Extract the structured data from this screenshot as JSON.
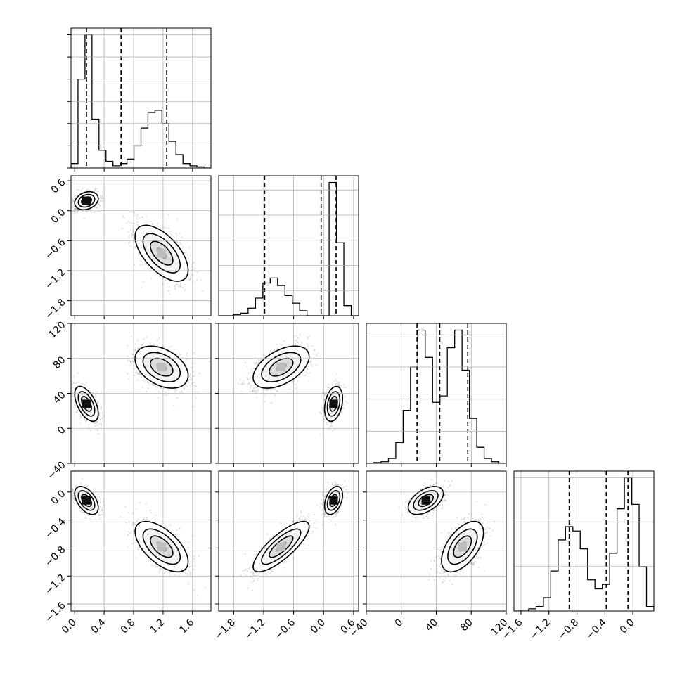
{
  "chart_data": {
    "type": "corner",
    "grid": true,
    "dimensions": [
      {
        "range": [
          -0.05,
          1.85
        ],
        "ticks": [
          0.0,
          0.4,
          0.8,
          1.2,
          1.6
        ],
        "tick_labels": [
          "0.0",
          "0.4",
          "0.8",
          "1.2",
          "1.6"
        ],
        "quantiles": [
          0.16,
          0.63,
          1.25
        ],
        "hist_bins": [
          2,
          40,
          60,
          22,
          8,
          3,
          1,
          2,
          4,
          10,
          18,
          25,
          26,
          20,
          12,
          6,
          2,
          1,
          0.5,
          0
        ]
      },
      {
        "range": [
          -2.1,
          0.7
        ],
        "ticks": [
          -1.8,
          -1.2,
          -0.6,
          0.0,
          0.6
        ],
        "tick_labels": [
          "−1.8",
          "−1.2",
          "−0.6",
          "0.0",
          "0.6"
        ],
        "quantiles": [
          -1.18,
          -0.05,
          0.25
        ],
        "hist_bins": [
          0,
          0,
          0.5,
          1,
          3,
          7,
          13,
          15,
          12,
          8,
          5,
          2,
          0,
          0,
          0,
          53,
          29,
          4,
          0
        ],
        "hist_y_ticks": [
          0,
          10,
          20,
          30,
          40,
          50
        ]
      },
      {
        "range": [
          -40,
          120
        ],
        "ticks": [
          -40,
          0,
          40,
          80,
          120
        ],
        "tick_labels": [
          "−40",
          "0",
          "40",
          "80",
          "120"
        ],
        "quantiles": [
          18,
          44,
          76
        ],
        "hist_bins": [
          0,
          0.5,
          1,
          3,
          13,
          33,
          60,
          83,
          66,
          38,
          42,
          72,
          83,
          58,
          28,
          10,
          3,
          1,
          0
        ],
        "hist_y_ticks": [
          0,
          20,
          40,
          60,
          80,
          100
        ]
      },
      {
        "range": [
          -1.7,
          0.3
        ],
        "ticks": [
          -1.6,
          -1.2,
          -0.8,
          -0.4,
          0.0
        ],
        "tick_labels": [
          "−1.6",
          "−1.2",
          "−0.8",
          "−0.4",
          "0.0"
        ],
        "quantiles": [
          -0.91,
          -0.38,
          -0.07
        ],
        "hist_bins": [
          0,
          0,
          0.5,
          1,
          3,
          9,
          16,
          19,
          18,
          14,
          7,
          5,
          6,
          13,
          23,
          30,
          24,
          10,
          1
        ],
        "hist_y_ticks": [
          0,
          10,
          20,
          30
        ]
      }
    ],
    "modes": [
      {
        "weight": 0.42,
        "mean": [
          0.16,
          0.2,
          28,
          -0.12
        ],
        "sd": [
          0.08,
          0.09,
          10,
          0.1
        ]
      },
      {
        "weight": 0.58,
        "mean": [
          1.18,
          -0.85,
          70,
          -0.78
        ],
        "sd": [
          0.18,
          0.28,
          12,
          0.18
        ]
      }
    ],
    "pair_correlations": {
      "1,0": [
        0.25,
        -0.6
      ],
      "2,0": [
        -0.55,
        -0.4
      ],
      "2,1": [
        0.3,
        0.5
      ],
      "3,0": [
        -0.5,
        -0.6
      ],
      "3,1": [
        0.4,
        0.8
      ],
      "3,2": [
        0.5,
        0.55
      ]
    }
  }
}
